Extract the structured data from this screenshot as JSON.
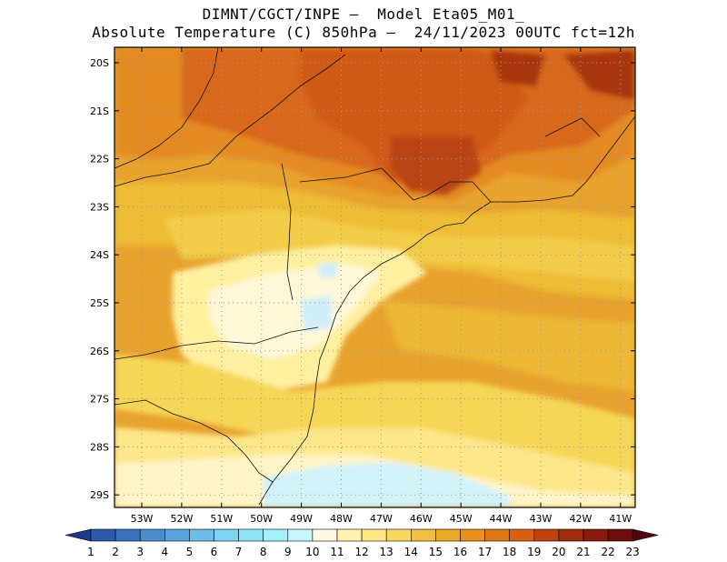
{
  "header": {
    "title_line1": "DIMNT/CGCT/INPE –  Model Eta05_M01_",
    "title_line2": "Absolute Temperature (C) 850hPa –  24/11/2023 00UTC fct=12h"
  },
  "map": {
    "lat_labels": [
      "20S",
      "21S",
      "22S",
      "23S",
      "24S",
      "25S",
      "26S",
      "27S",
      "28S",
      "29S"
    ],
    "lon_labels": [
      "53W",
      "52W",
      "51W",
      "50W",
      "49W",
      "48W",
      "47W",
      "46W",
      "45W",
      "44W",
      "43W",
      "42W",
      "41W"
    ],
    "grid": true
  },
  "colorbar": {
    "labels": [
      "1",
      "2",
      "3",
      "4",
      "5",
      "6",
      "7",
      "8",
      "9",
      "10",
      "11",
      "12",
      "13",
      "14",
      "15",
      "16",
      "17",
      "18",
      "19",
      "20",
      "21",
      "22",
      "23"
    ],
    "colors": [
      "#1c3a8c",
      "#2a5aa8",
      "#3a72bc",
      "#4a8ccc",
      "#5aa6dc",
      "#6cbee8",
      "#7ed4f0",
      "#90e4f6",
      "#a6f0fa",
      "#c8f6fc",
      "#fff8e4",
      "#fff2b0",
      "#ffe886",
      "#f8d860",
      "#f0c040",
      "#eca828",
      "#e89020",
      "#e07818",
      "#d86010",
      "#c04010",
      "#a02c0c",
      "#881c0c",
      "#6c0c0c",
      "#50060a"
    ]
  }
}
